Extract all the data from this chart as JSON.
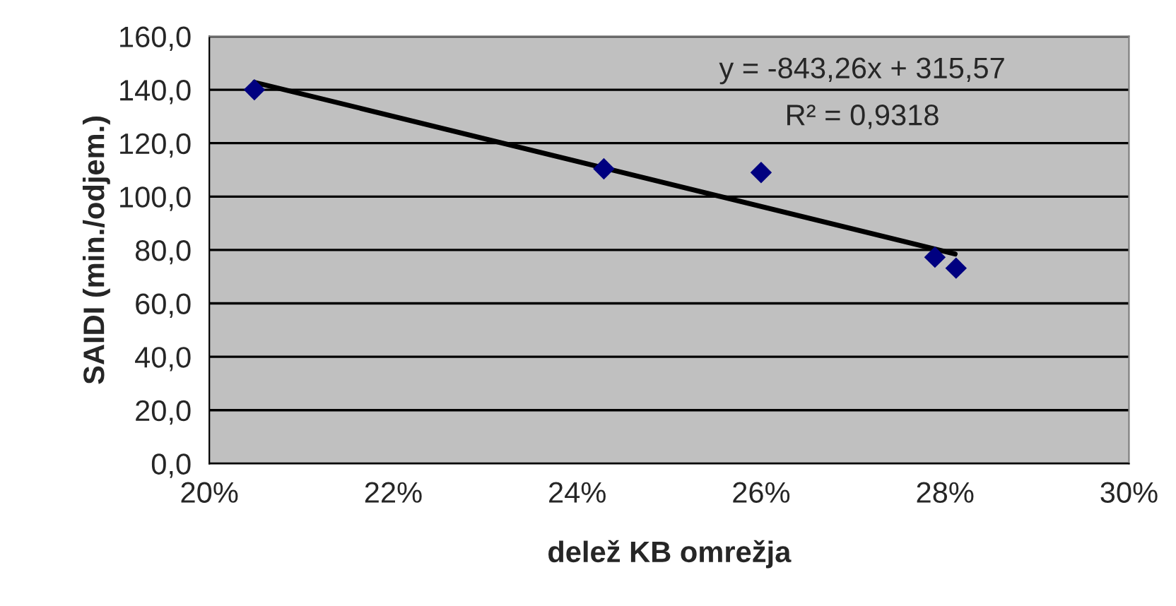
{
  "chart_data": {
    "type": "scatter",
    "xlabel": "delež KB omrežja",
    "ylabel": "SAIDI (min./odjem.)",
    "series": [
      {
        "color": "#000080",
        "marker": "diamond",
        "x": [
          20.49,
          24.29,
          26.0,
          27.89,
          28.12
        ],
        "values": [
          140,
          110.4,
          109.0,
          77.3,
          73.2
        ]
      },
      {
        "type": "line",
        "color": "#000000",
        "marker": "none",
        "x": [
          20.49,
          28.11
        ],
        "values": [
          142.8,
          78.5
        ]
      }
    ],
    "annotations": [
      "y = -843,26x + 315,57",
      "R² = 0,9318"
    ],
    "xlim": [
      20,
      30
    ],
    "xticks": [
      {
        "value": 20,
        "label": "20%"
      },
      {
        "value": 22,
        "label": "22%"
      },
      {
        "value": 24,
        "label": "24%"
      },
      {
        "value": 26,
        "label": "26%"
      },
      {
        "value": 28,
        "label": "28%"
      },
      {
        "value": 30,
        "label": "30%"
      }
    ],
    "ylim": [
      0,
      160
    ],
    "yticks": [
      {
        "value": 0,
        "label": "0,0"
      },
      {
        "value": 20,
        "label": "20,0"
      },
      {
        "value": 40,
        "label": "40,0"
      },
      {
        "value": 60,
        "label": "60,0"
      },
      {
        "value": 80,
        "label": "80,0"
      },
      {
        "value": 100,
        "label": "100,0"
      },
      {
        "value": 120,
        "label": "120,0"
      },
      {
        "value": 140,
        "label": "140,0"
      },
      {
        "value": 160,
        "label": "160,0"
      }
    ],
    "grid": "y",
    "legend": false
  }
}
